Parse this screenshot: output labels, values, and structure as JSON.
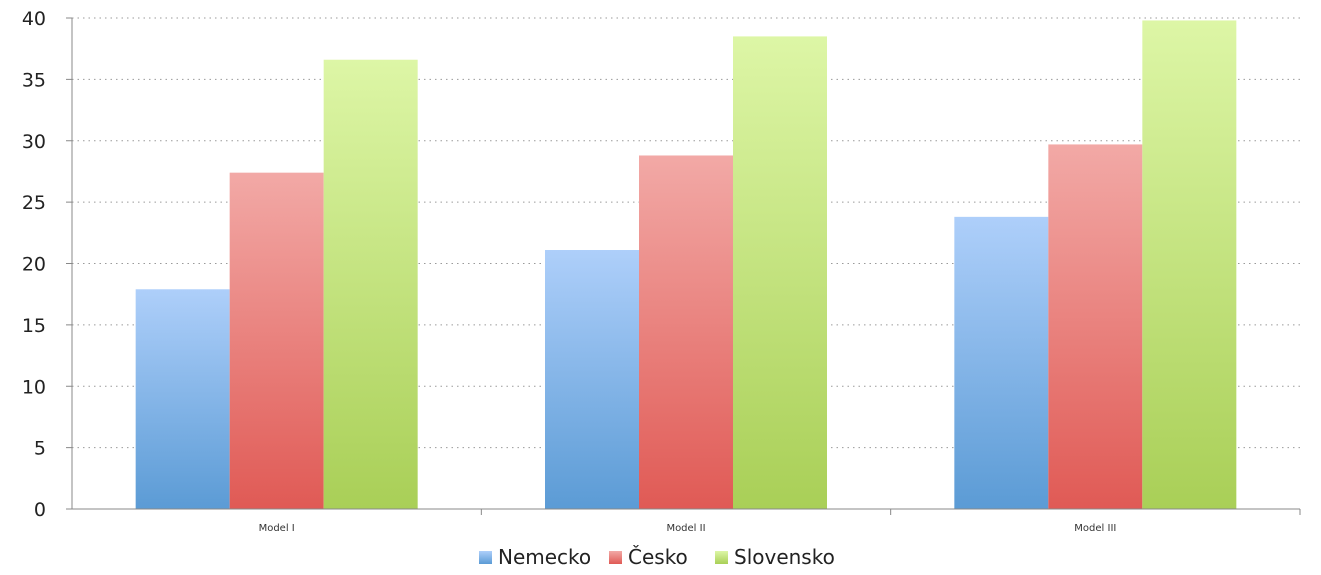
{
  "chart_data": {
    "type": "bar",
    "title": "",
    "xlabel": "",
    "ylabel": "",
    "categories": [
      "Model I",
      "Model II",
      "Model III"
    ],
    "series": [
      {
        "name": "Nemecko",
        "values": [
          17.9,
          21.1,
          23.8
        ],
        "color": "#5B9BD5"
      },
      {
        "name": "Česko",
        "values": [
          27.4,
          28.8,
          29.7
        ],
        "color": "#E05A55"
      },
      {
        "name": "Slovensko",
        "values": [
          36.6,
          38.5,
          39.8
        ],
        "color": "#A9CF57"
      }
    ],
    "ylim": [
      0,
      40
    ],
    "yticks": [
      0,
      5,
      10,
      15,
      20,
      25,
      30,
      35,
      40
    ],
    "grid": true,
    "legend": "bottom"
  }
}
